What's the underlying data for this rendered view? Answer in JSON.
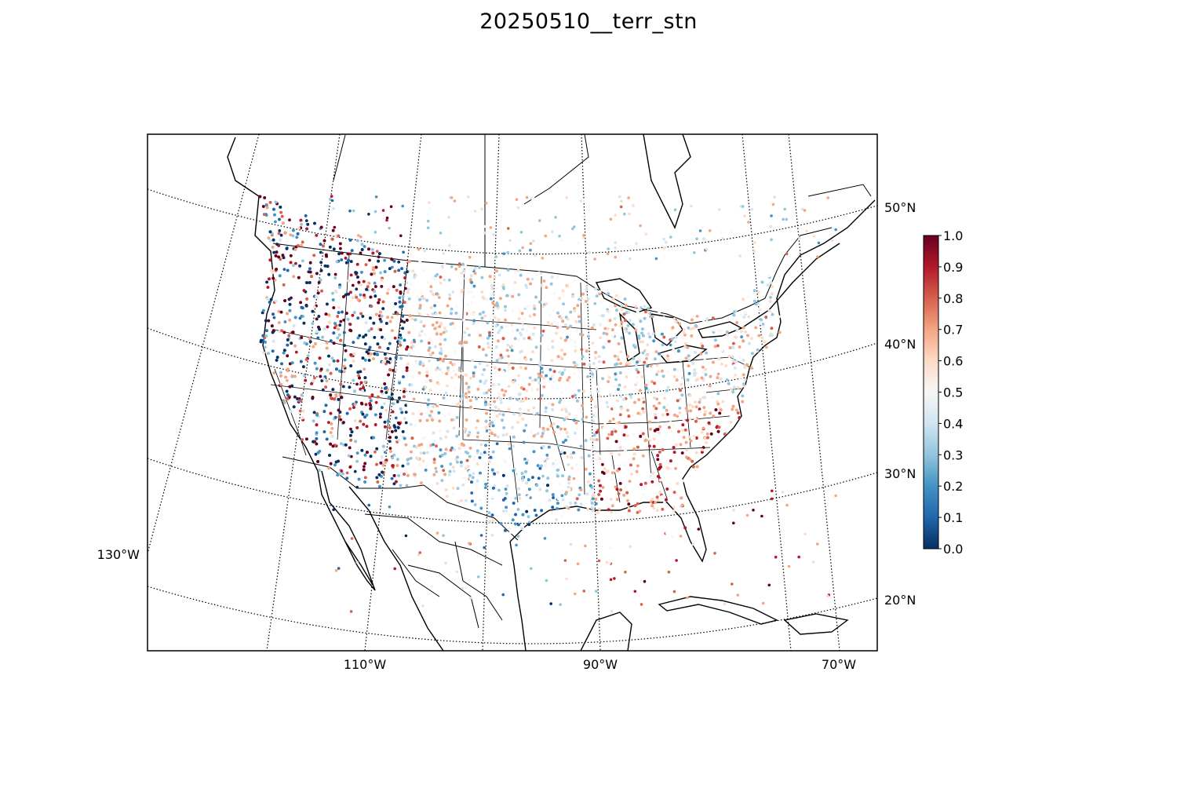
{
  "title": "20250510__terr_stn",
  "map": {
    "projection": "lambert-conformal",
    "lat_labels": [
      "50°N",
      "40°N",
      "30°N",
      "20°N"
    ],
    "lon_labels": [
      "130°W",
      "110°W",
      "90°W",
      "70°W"
    ],
    "graticule_style": "dotted",
    "features": [
      "coastlines",
      "country-borders",
      "state-borders"
    ]
  },
  "colorbar": {
    "colormap": "RdBu_r",
    "min": 0.0,
    "max": 1.0,
    "ticks": [
      "0.0",
      "0.1",
      "0.2",
      "0.3",
      "0.4",
      "0.5",
      "0.6",
      "0.7",
      "0.8",
      "0.9",
      "1.0"
    ],
    "colors": [
      "#053061",
      "#2166ac",
      "#4393c3",
      "#92c5de",
      "#d1e5f0",
      "#f7f7f7",
      "#fddbc7",
      "#f4a582",
      "#d6604d",
      "#b2182b",
      "#67001f"
    ]
  },
  "stations": {
    "variable": "terr_stn",
    "date": "20250510",
    "value_range": [
      0.0,
      1.0
    ]
  }
}
